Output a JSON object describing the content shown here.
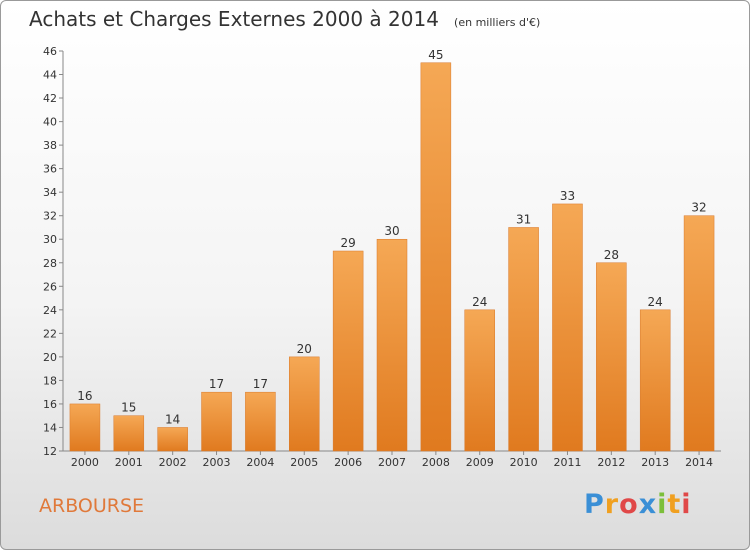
{
  "chart_data": {
    "type": "bar",
    "title": "Achats et Charges Externes 2000 à 2014",
    "unit_label": "(en milliers d'€)",
    "categories": [
      "2000",
      "2001",
      "2002",
      "2003",
      "2004",
      "2005",
      "2006",
      "2007",
      "2008",
      "2009",
      "2010",
      "2011",
      "2012",
      "2013",
      "2014"
    ],
    "values": [
      16,
      15,
      14,
      17,
      17,
      20,
      29,
      30,
      45,
      24,
      31,
      33,
      28,
      24,
      32
    ],
    "ylim": [
      12,
      46
    ],
    "yticks": [
      12,
      14,
      16,
      18,
      20,
      22,
      24,
      26,
      28,
      30,
      32,
      34,
      36,
      38,
      40,
      42,
      44,
      46
    ],
    "grid": false,
    "bar_color_top": "#f5a855",
    "bar_color_bottom": "#e07a1f"
  },
  "commune": "ARBOURSE",
  "brand": {
    "letters": [
      "P",
      "r",
      "o",
      "x",
      "i",
      "t",
      "i"
    ],
    "colors": [
      "#3a8fd6",
      "#f0a020",
      "#e04848",
      "#3a8fd6",
      "#7cbf3a",
      "#f0a020",
      "#e04848"
    ]
  }
}
